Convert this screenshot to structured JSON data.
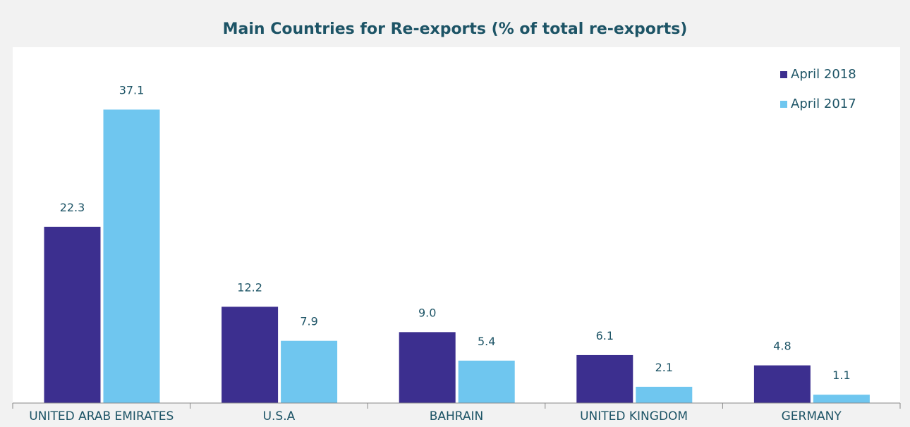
{
  "chart_data": {
    "type": "bar",
    "title": "Main Countries for Re-exports (% of total re-exports)",
    "categories": [
      "UNITED ARAB EMIRATES",
      "U.S.A",
      "BAHRAIN",
      "UNITED KINGDOM",
      "GERMANY"
    ],
    "series": [
      {
        "name": "April 2018",
        "color": "#3c2f8f",
        "values": [
          22.3,
          12.2,
          9,
          6.1,
          4.8
        ],
        "value_labels": [
          "22.3",
          "12.2",
          "9.0",
          "6.1",
          "4.8"
        ]
      },
      {
        "name": "April 2017",
        "color": "#6fc6ef",
        "values": [
          37.1,
          7.9,
          5.4,
          2.1,
          1.1
        ],
        "value_labels": [
          "37.1",
          "7.9",
          "5.4",
          "2.1",
          "1.1"
        ]
      }
    ],
    "legend": "top-right"
  }
}
